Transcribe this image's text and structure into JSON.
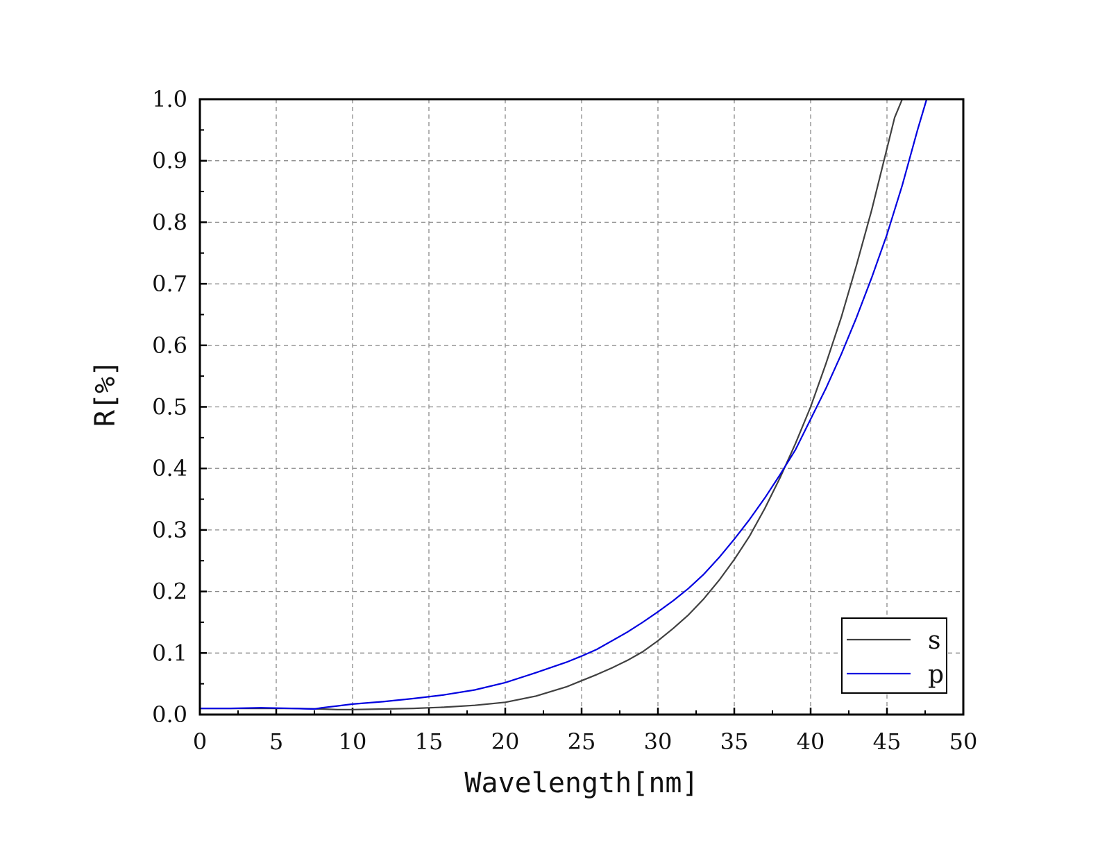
{
  "chart_data": {
    "type": "line",
    "title": "",
    "xlabel": "Wavelength[nm]",
    "ylabel": "R[%]",
    "xlim": [
      0,
      50
    ],
    "ylim": [
      0.0,
      1.0
    ],
    "x_ticks": [
      "0",
      "5",
      "10",
      "15",
      "20",
      "25",
      "30",
      "35",
      "40",
      "45",
      "50"
    ],
    "y_ticks": [
      "0.0",
      "0.1",
      "0.2",
      "0.3",
      "0.4",
      "0.5",
      "0.6",
      "0.7",
      "0.8",
      "0.9",
      "1.0"
    ],
    "grid": true,
    "legend_position": "bottom-right",
    "series": [
      {
        "name": "s",
        "color": "#404040",
        "x": [
          0,
          2,
          4,
          6,
          8,
          9,
          10,
          12,
          14,
          16,
          18,
          20,
          22,
          24,
          25,
          26,
          27,
          28,
          29,
          30,
          31,
          32,
          33,
          34,
          35,
          36,
          37,
          38,
          39,
          40,
          41,
          42,
          43,
          44,
          45,
          45.5,
          46
        ],
        "y": [
          0.01,
          0.01,
          0.01,
          0.01,
          0.009,
          0.008,
          0.008,
          0.009,
          0.01,
          0.012,
          0.015,
          0.02,
          0.03,
          0.045,
          0.055,
          0.065,
          0.076,
          0.088,
          0.102,
          0.12,
          0.14,
          0.162,
          0.188,
          0.218,
          0.252,
          0.29,
          0.335,
          0.385,
          0.44,
          0.5,
          0.57,
          0.645,
          0.73,
          0.82,
          0.92,
          0.97,
          1.0
        ]
      },
      {
        "name": "p",
        "color": "#0000e0",
        "x": [
          0,
          2,
          4,
          6,
          7.5,
          8,
          9,
          10,
          12,
          14,
          16,
          18,
          20,
          22,
          24,
          25,
          26,
          27,
          28,
          29,
          30,
          31,
          32,
          33,
          34,
          35,
          36,
          37,
          38,
          39,
          40,
          41,
          42,
          43,
          44,
          45,
          46,
          47,
          47.6
        ],
        "y": [
          0.01,
          0.01,
          0.011,
          0.01,
          0.009,
          0.011,
          0.014,
          0.017,
          0.021,
          0.026,
          0.032,
          0.04,
          0.052,
          0.068,
          0.085,
          0.095,
          0.106,
          0.12,
          0.134,
          0.15,
          0.167,
          0.185,
          0.205,
          0.228,
          0.255,
          0.285,
          0.317,
          0.352,
          0.39,
          0.43,
          0.48,
          0.53,
          0.585,
          0.645,
          0.71,
          0.78,
          0.86,
          0.95,
          1.0
        ]
      }
    ]
  }
}
